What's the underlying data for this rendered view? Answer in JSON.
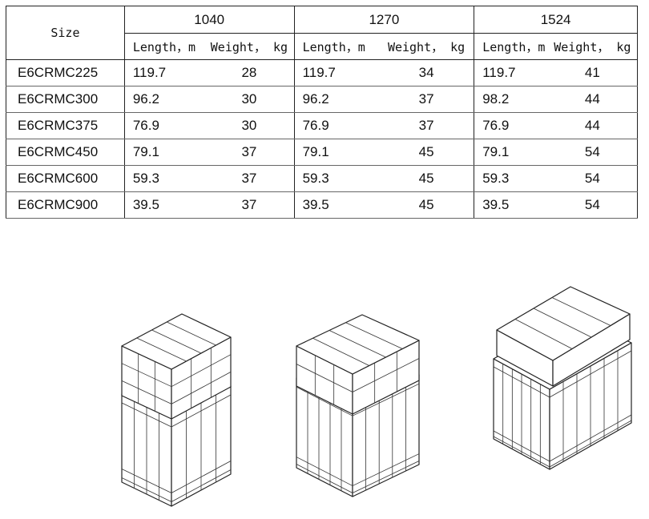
{
  "table": {
    "size_header": "Size",
    "groups": [
      "1040",
      "1270",
      "1524"
    ],
    "subheaders": [
      "Length，m",
      "Weight， kg"
    ],
    "rows": [
      [
        "E6CRMC225",
        119.7,
        28,
        119.7,
        34,
        119.7,
        41
      ],
      [
        "E6CRMC300",
        96.2,
        30,
        96.2,
        37,
        98.2,
        44
      ],
      [
        "E6CRMC375",
        76.9,
        30,
        76.9,
        37,
        76.9,
        44
      ],
      [
        "E6CRMC450",
        79.1,
        37,
        79.1,
        45,
        79.1,
        54
      ],
      [
        "E6CRMC600",
        59.3,
        37,
        59.3,
        45,
        59.3,
        54
      ],
      [
        "E6CRMC900",
        39.5,
        37,
        39.5,
        45,
        39.5,
        54
      ]
    ]
  }
}
